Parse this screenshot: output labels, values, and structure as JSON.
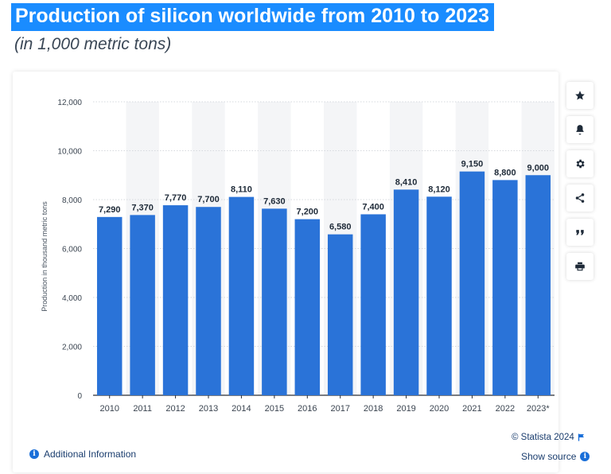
{
  "header": {
    "title": "Production of silicon worldwide from 2010 to 2023",
    "subtitle": "(in 1,000 metric tons)"
  },
  "chart_data": {
    "type": "bar",
    "title": "Production of silicon worldwide from 2010 to 2023",
    "subtitle": "(in 1,000 metric tons)",
    "xlabel": "",
    "ylabel": "Production in thousand metric tons",
    "categories": [
      "2010",
      "2011",
      "2012",
      "2013",
      "2014",
      "2015",
      "2016",
      "2017",
      "2018",
      "2019",
      "2020",
      "2021",
      "2022",
      "2023*"
    ],
    "values": [
      7290,
      7370,
      7770,
      7700,
      8110,
      7630,
      7200,
      6580,
      7400,
      8410,
      8120,
      9150,
      8800,
      9000
    ],
    "value_labels": [
      "7,290",
      "7,370",
      "7,770",
      "7,700",
      "8,110",
      "7,630",
      "7,200",
      "6,580",
      "7,400",
      "8,410",
      "8,120",
      "9,150",
      "8,800",
      "9,000"
    ],
    "ylim": [
      0,
      12000
    ],
    "yticks": [
      0,
      2000,
      4000,
      6000,
      8000,
      10000,
      12000
    ],
    "ytick_labels": [
      "0",
      "2,000",
      "4,000",
      "6,000",
      "8,000",
      "10,000",
      "12,000"
    ],
    "grid": true,
    "bar_color": "#2a73d8"
  },
  "toolbar": {
    "icons": [
      "star-icon",
      "bell-icon",
      "gear-icon",
      "share-icon",
      "quote-icon",
      "print-icon"
    ]
  },
  "footer": {
    "additional_info": "Additional Information",
    "copyright": "© Statista 2024",
    "show_source": "Show source",
    "info_glyph": "i"
  },
  "colors": {
    "title_bg": "#1a8cff",
    "link": "#1a3d6e",
    "bar": "#2a73d8"
  }
}
